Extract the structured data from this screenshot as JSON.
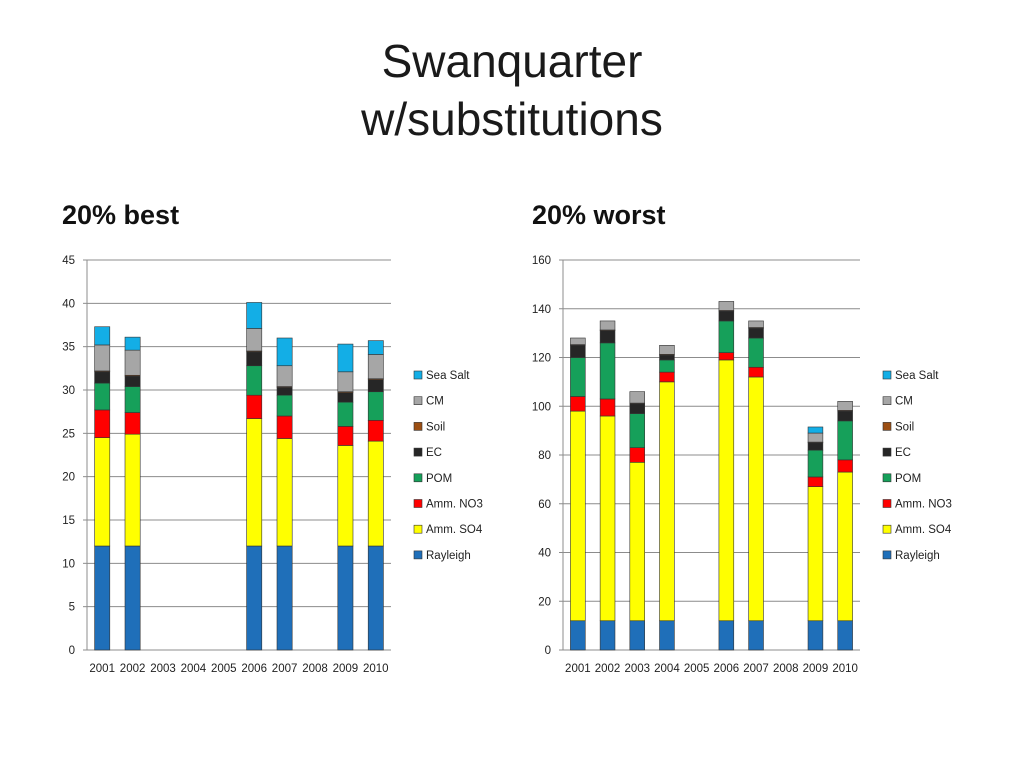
{
  "page": {
    "title_line1": "Swanquarter",
    "title_line2": "w/substitutions"
  },
  "chart_data": [
    {
      "type": "bar",
      "stacked": true,
      "subtitle": "20% best",
      "categories": [
        "2001",
        "2002",
        "2003",
        "2004",
        "2005",
        "2006",
        "2007",
        "2008",
        "2009",
        "2010"
      ],
      "ylim": [
        0,
        45
      ],
      "yticks": [
        0,
        5,
        10,
        15,
        20,
        25,
        30,
        35,
        40,
        45
      ],
      "grid": true,
      "legend_position": "right",
      "series": [
        {
          "name": "Rayleigh",
          "color": "#1f6fb9",
          "values": [
            12,
            12,
            0,
            0,
            0,
            12,
            12,
            0,
            12,
            12
          ]
        },
        {
          "name": "Amm. SO4",
          "color": "#ffff00",
          "values": [
            12.5,
            12.9,
            0,
            0,
            0,
            14.7,
            12.4,
            0,
            11.6,
            12.1
          ]
        },
        {
          "name": "Amm. NO3",
          "color": "#ff0000",
          "values": [
            3.2,
            2.5,
            0,
            0,
            0,
            2.7,
            2.6,
            0,
            2.2,
            2.4
          ]
        },
        {
          "name": "POM",
          "color": "#16a05a",
          "values": [
            3.1,
            3.0,
            0,
            0,
            0,
            3.4,
            2.4,
            0,
            2.8,
            3.3
          ]
        },
        {
          "name": "EC",
          "color": "#262626",
          "values": [
            1.3,
            1.2,
            0,
            0,
            0,
            1.6,
            0.9,
            0,
            1.1,
            1.4
          ]
        },
        {
          "name": "Soil",
          "color": "#9c4f13",
          "values": [
            0.1,
            0.1,
            0,
            0,
            0,
            0.1,
            0.1,
            0,
            0.1,
            0.1
          ]
        },
        {
          "name": "CM",
          "color": "#a6a6a6",
          "values": [
            3.0,
            2.9,
            0,
            0,
            0,
            2.6,
            2.4,
            0,
            2.3,
            2.8
          ]
        },
        {
          "name": "Sea Salt",
          "color": "#13aee6",
          "values": [
            2.1,
            1.5,
            0,
            0,
            0,
            3.0,
            3.2,
            0,
            3.2,
            1.6
          ]
        }
      ]
    },
    {
      "type": "bar",
      "stacked": true,
      "subtitle": "20% worst",
      "categories": [
        "2001",
        "2002",
        "2003",
        "2004",
        "2005",
        "2006",
        "2007",
        "2008",
        "2009",
        "2010"
      ],
      "ylim": [
        0,
        160
      ],
      "yticks": [
        0,
        20,
        40,
        60,
        80,
        100,
        120,
        140,
        160
      ],
      "grid": true,
      "legend_position": "right",
      "series": [
        {
          "name": "Rayleigh",
          "color": "#1f6fb9",
          "values": [
            12,
            12,
            12,
            12,
            0,
            12,
            12,
            0,
            12,
            12
          ]
        },
        {
          "name": "Amm. SO4",
          "color": "#ffff00",
          "values": [
            86,
            84,
            65,
            98,
            0,
            107,
            100,
            0,
            55,
            61
          ]
        },
        {
          "name": "Amm. NO3",
          "color": "#ff0000",
          "values": [
            6,
            7,
            6,
            4,
            0,
            3,
            4,
            0,
            4,
            5
          ]
        },
        {
          "name": "POM",
          "color": "#16a05a",
          "values": [
            16,
            23,
            14,
            5,
            0,
            13,
            12,
            0,
            11,
            16
          ]
        },
        {
          "name": "EC",
          "color": "#262626",
          "values": [
            5,
            5,
            4,
            2,
            0,
            4,
            4,
            0,
            3,
            4
          ]
        },
        {
          "name": "Soil",
          "color": "#9c4f13",
          "values": [
            0.3,
            0.3,
            0.3,
            0.3,
            0,
            0.3,
            0.3,
            0,
            0.3,
            0.3
          ]
        },
        {
          "name": "CM",
          "color": "#a6a6a6",
          "values": [
            2.7,
            3.7,
            4.7,
            3.7,
            0,
            3.7,
            2.7,
            0,
            3.7,
            3.7
          ]
        },
        {
          "name": "Sea Salt",
          "color": "#13aee6",
          "values": [
            0,
            0,
            0,
            0,
            0,
            0,
            0,
            0,
            2.5,
            0
          ]
        }
      ]
    }
  ]
}
